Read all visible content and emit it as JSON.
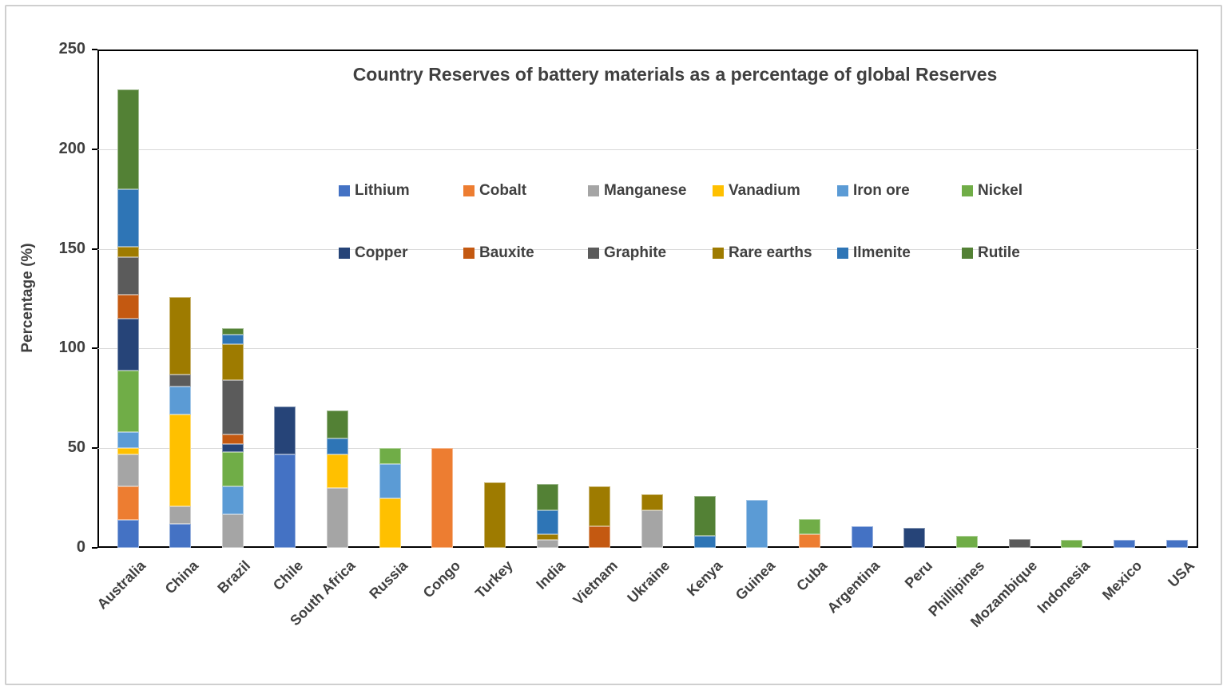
{
  "chart_data": {
    "type": "bar",
    "stacked": true,
    "title": "Country Reserves of battery materials as a percentage of global Reserves",
    "ylabel": "Percentage (%)",
    "ylim": [
      0,
      250
    ],
    "ytick_step": 50,
    "ytick_labels": [
      "0",
      "50",
      "100",
      "150",
      "200",
      "250"
    ],
    "grid": true,
    "legend_position": "inside-top",
    "legend_rows": [
      [
        "Lithium",
        "Cobalt",
        "Manganese",
        "Vanadium",
        "Iron ore",
        "Nickel"
      ],
      [
        "Copper",
        "Bauxite",
        "Graphite",
        "Rare earths",
        "Ilmenite",
        "Rutile"
      ]
    ],
    "categories": [
      "Australia",
      "China",
      "Brazil",
      "Chile",
      "South Africa",
      "Russia",
      "Congo",
      "Turkey",
      "India",
      "Vietnam",
      "Ukraine",
      "Kenya",
      "Guinea",
      "Cuba",
      "Argentina",
      "Peru",
      "Phillipines",
      "Mozambique",
      "Indonesia",
      "Mexico",
      "USA"
    ],
    "series": [
      {
        "name": "Lithium",
        "color": "#4472C4",
        "values": [
          14,
          12,
          0,
          47,
          0,
          0,
          0,
          0,
          0,
          0,
          0,
          0,
          0,
          0,
          11,
          0,
          0,
          0,
          0,
          4,
          4
        ]
      },
      {
        "name": "Cobalt",
        "color": "#ED7D31",
        "values": [
          17,
          0,
          0,
          0,
          0,
          0,
          50,
          0,
          0,
          0,
          0,
          0,
          0,
          7,
          0,
          0,
          0,
          0,
          0,
          0,
          0
        ]
      },
      {
        "name": "Manganese",
        "color": "#A5A5A5",
        "values": [
          16,
          9,
          17,
          0,
          30,
          0,
          0,
          0,
          4,
          0,
          19,
          0,
          0,
          0,
          0,
          0,
          0,
          0,
          0,
          0,
          0
        ]
      },
      {
        "name": "Vanadium",
        "color": "#FFC000",
        "values": [
          3,
          46,
          0,
          0,
          17,
          25,
          0,
          0,
          0,
          0,
          0,
          0,
          0,
          0,
          0,
          0,
          0,
          0,
          0,
          0,
          0
        ]
      },
      {
        "name": "Iron ore",
        "color": "#5B9BD5",
        "values": [
          8,
          14,
          14,
          0,
          0,
          17,
          0,
          0,
          0,
          0,
          0,
          0,
          24,
          0,
          0,
          0,
          0,
          0,
          0,
          0,
          0
        ]
      },
      {
        "name": "Nickel",
        "color": "#70AD47",
        "values": [
          31,
          0,
          17,
          0,
          0,
          8,
          0,
          0,
          0,
          0,
          0,
          0,
          0,
          7.5,
          0,
          0,
          6,
          0,
          4,
          0,
          0
        ]
      },
      {
        "name": "Copper",
        "color": "#264478",
        "values": [
          26,
          0,
          4,
          24,
          0,
          0,
          0,
          0,
          0,
          0,
          0,
          0,
          0,
          0,
          0,
          10,
          0,
          0,
          0,
          0,
          0
        ]
      },
      {
        "name": "Bauxite",
        "color": "#C45911",
        "values": [
          12,
          0,
          5,
          0,
          0,
          0,
          0,
          0,
          0,
          11,
          0,
          0,
          0,
          0,
          0,
          0,
          0,
          0,
          0,
          0,
          0
        ]
      },
      {
        "name": "Graphite",
        "color": "#5B5B5B",
        "values": [
          19,
          6,
          27,
          0,
          0,
          0,
          0,
          0,
          0,
          0,
          0,
          0,
          0,
          0,
          0,
          0,
          0,
          4.5,
          0,
          0,
          0
        ]
      },
      {
        "name": "Rare earths",
        "color": "#9E7B00",
        "values": [
          5,
          39,
          18,
          0,
          0,
          0,
          0,
          33,
          3,
          20,
          8,
          0,
          0,
          0,
          0,
          0,
          0,
          0,
          0,
          0,
          0
        ]
      },
      {
        "name": "Ilmenite",
        "color": "#2E75B6",
        "values": [
          29,
          0,
          5,
          0,
          8,
          0,
          0,
          0,
          12,
          0,
          0,
          6,
          0,
          0,
          0,
          0,
          0,
          0,
          0,
          0,
          0
        ]
      },
      {
        "name": "Rutile",
        "color": "#538135",
        "values": [
          50,
          0,
          3,
          0,
          14,
          0,
          0,
          0,
          13,
          0,
          0,
          20,
          0,
          0,
          0,
          0,
          0,
          0,
          0,
          0,
          0
        ]
      }
    ]
  }
}
